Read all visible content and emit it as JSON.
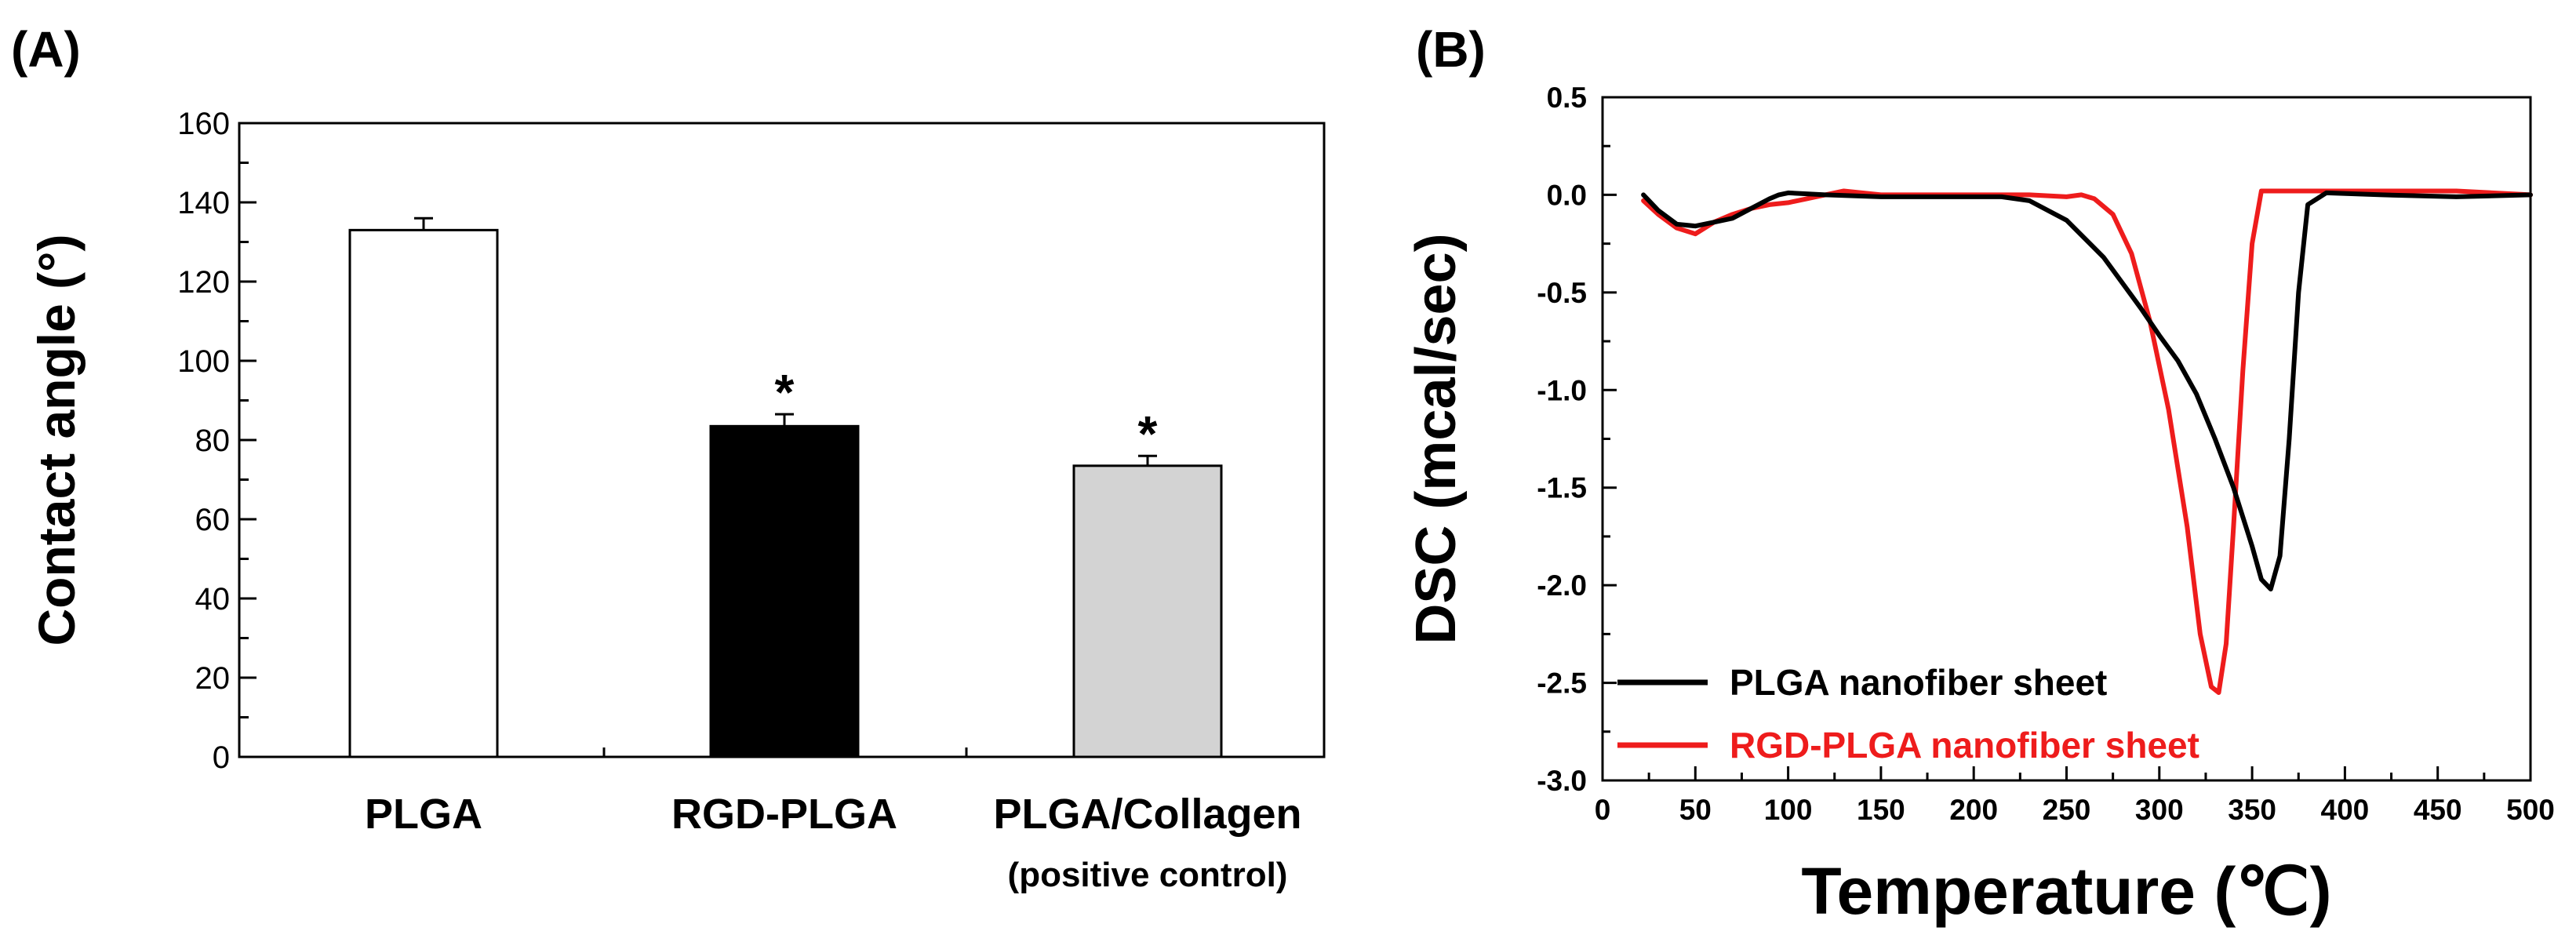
{
  "chart_data": [
    {
      "panel": "(A)",
      "type": "bar",
      "title": "",
      "xlabel": "",
      "ylabel": "Contact angle (°)",
      "ylim": [
        0,
        160
      ],
      "yticks": [
        0,
        20,
        40,
        60,
        80,
        100,
        120,
        140,
        160
      ],
      "categories": [
        {
          "label": "PLGA",
          "sublabel": ""
        },
        {
          "label": "RGD-PLGA",
          "sublabel": ""
        },
        {
          "label": "PLGA/Collagen",
          "sublabel": "(positive control)"
        }
      ],
      "values": [
        133,
        83.5,
        73.5
      ],
      "errors": [
        3,
        3,
        2.5
      ],
      "colors": [
        "#ffffff",
        "#000000",
        "#d3d3d3"
      ],
      "significance": [
        "",
        "*",
        "*"
      ]
    },
    {
      "panel": "(B)",
      "type": "line",
      "title": "",
      "xlabel": "Temperature (℃)",
      "ylabel": "DSC (mcal/sec)",
      "xlim": [
        0,
        500
      ],
      "ylim": [
        -3.0,
        0.5
      ],
      "xticks": [
        0,
        50,
        100,
        150,
        200,
        250,
        300,
        350,
        400,
        450,
        500
      ],
      "yticks": [
        "0.5",
        "0.0",
        "-0.5",
        "-1.0",
        "-1.5",
        "-2.0",
        "-2.5",
        "-3.0"
      ],
      "legend_position": "bottom-left",
      "series": [
        {
          "name": "PLGA nanofiber sheet",
          "color": "#000000",
          "x": [
            22,
            30,
            40,
            50,
            60,
            70,
            80,
            90,
            95,
            100,
            120,
            150,
            180,
            200,
            215,
            230,
            250,
            270,
            290,
            300,
            310,
            320,
            330,
            340,
            350,
            355,
            360,
            365,
            370,
            375,
            380,
            390,
            420,
            460,
            500
          ],
          "y": [
            0.0,
            -0.08,
            -0.15,
            -0.16,
            -0.14,
            -0.12,
            -0.07,
            -0.02,
            0.0,
            0.01,
            0.0,
            -0.01,
            -0.01,
            -0.01,
            -0.01,
            -0.03,
            -0.13,
            -0.32,
            -0.58,
            -0.72,
            -0.85,
            -1.02,
            -1.25,
            -1.5,
            -1.8,
            -1.97,
            -2.02,
            -1.85,
            -1.25,
            -0.5,
            -0.05,
            0.01,
            0.0,
            -0.01,
            0.0
          ]
        },
        {
          "name": "RGD-PLGA nanofiber sheet",
          "color": "#ee1c1c",
          "x": [
            22,
            30,
            40,
            50,
            60,
            70,
            80,
            90,
            100,
            110,
            120,
            130,
            150,
            200,
            230,
            250,
            258,
            265,
            275,
            285,
            295,
            305,
            315,
            322,
            328,
            332,
            336,
            340,
            345,
            350,
            355,
            360,
            380,
            420,
            460,
            500
          ],
          "y": [
            -0.03,
            -0.1,
            -0.17,
            -0.2,
            -0.14,
            -0.1,
            -0.07,
            -0.05,
            -0.04,
            -0.02,
            0.0,
            0.02,
            0.0,
            0.0,
            0.0,
            -0.01,
            0.0,
            -0.02,
            -0.1,
            -0.3,
            -0.65,
            -1.1,
            -1.7,
            -2.25,
            -2.52,
            -2.55,
            -2.3,
            -1.7,
            -0.9,
            -0.25,
            0.02,
            0.02,
            0.02,
            0.02,
            0.02,
            0.0
          ]
        }
      ]
    }
  ]
}
